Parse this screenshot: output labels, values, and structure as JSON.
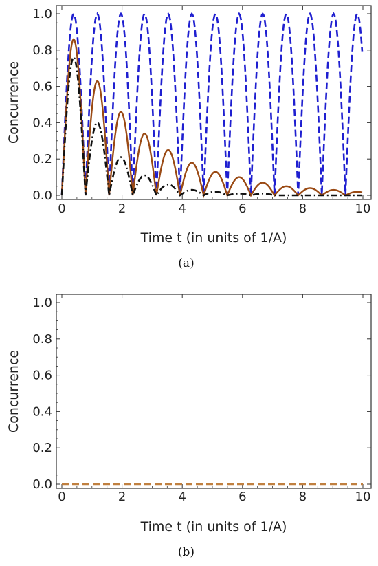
{
  "chart_data": [
    {
      "panel_label": "(a)",
      "type": "line",
      "xlabel": "Time t (in units of 1/A)",
      "ylabel": "Concurrence",
      "xlim": [
        0,
        10
      ],
      "ylim": [
        0,
        1
      ],
      "xticks": [
        "0",
        "2",
        "4",
        "6",
        "8",
        "10"
      ],
      "yticks": [
        "0.0",
        "0.2",
        "0.4",
        "0.6",
        "0.8",
        "1.0"
      ],
      "series": [
        {
          "style": "dashed",
          "color": "#1f1fd0",
          "period": 0.785,
          "peaks": [
            {
              "t": 0.39,
              "v": 1.0
            },
            {
              "t": 1.17,
              "v": 1.0
            },
            {
              "t": 1.96,
              "v": 1.0
            },
            {
              "t": 2.74,
              "v": 1.0
            },
            {
              "t": 3.53,
              "v": 1.0
            },
            {
              "t": 4.32,
              "v": 1.0
            },
            {
              "t": 5.1,
              "v": 1.0
            },
            {
              "t": 5.89,
              "v": 1.0
            },
            {
              "t": 6.67,
              "v": 1.0
            },
            {
              "t": 7.46,
              "v": 1.0
            },
            {
              "t": 8.25,
              "v": 1.0
            },
            {
              "t": 9.03,
              "v": 1.0
            },
            {
              "t": 9.82,
              "v": 1.0
            }
          ]
        },
        {
          "style": "solid",
          "color": "#9a4a14",
          "period": 0.785,
          "peaks": [
            {
              "t": 0.39,
              "v": 0.86
            },
            {
              "t": 1.17,
              "v": 0.63
            },
            {
              "t": 1.96,
              "v": 0.46
            },
            {
              "t": 2.74,
              "v": 0.34
            },
            {
              "t": 3.53,
              "v": 0.25
            },
            {
              "t": 4.32,
              "v": 0.18
            },
            {
              "t": 5.1,
              "v": 0.13
            },
            {
              "t": 5.89,
              "v": 0.1
            },
            {
              "t": 6.67,
              "v": 0.07
            },
            {
              "t": 7.46,
              "v": 0.05
            },
            {
              "t": 8.25,
              "v": 0.04
            },
            {
              "t": 9.03,
              "v": 0.03
            },
            {
              "t": 9.82,
              "v": 0.02
            }
          ]
        },
        {
          "style": "dashdot",
          "color": "#111111",
          "period": 0.785,
          "peaks": [
            {
              "t": 0.39,
              "v": 0.76
            },
            {
              "t": 1.17,
              "v": 0.4
            },
            {
              "t": 1.96,
              "v": 0.21
            },
            {
              "t": 2.74,
              "v": 0.11
            },
            {
              "t": 3.53,
              "v": 0.06
            },
            {
              "t": 4.32,
              "v": 0.03
            },
            {
              "t": 5.1,
              "v": 0.02
            },
            {
              "t": 5.89,
              "v": 0.01
            },
            {
              "t": 6.67,
              "v": 0.01
            },
            {
              "t": 7.46,
              "v": 0.0
            },
            {
              "t": 8.25,
              "v": 0.0
            },
            {
              "t": 9.03,
              "v": 0.0
            },
            {
              "t": 9.82,
              "v": 0.0
            }
          ]
        }
      ]
    },
    {
      "panel_label": "(b)",
      "type": "line",
      "xlabel": "Time t (in units of 1/A)",
      "ylabel": "Concurrence",
      "xlim": [
        0,
        10
      ],
      "ylim": [
        0,
        1
      ],
      "xticks": [
        "0",
        "2",
        "4",
        "6",
        "8",
        "10"
      ],
      "yticks": [
        "0.0",
        "0.2",
        "0.4",
        "0.6",
        "0.8",
        "1.0"
      ],
      "series": [
        {
          "style": "dashed",
          "color": "#c08040",
          "x": [
            0,
            10
          ],
          "y": [
            0,
            0
          ]
        }
      ]
    }
  ]
}
